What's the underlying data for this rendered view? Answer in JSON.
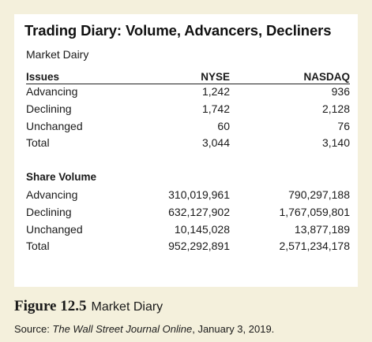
{
  "table": {
    "title": "Trading Diary: Volume, Advancers, Decliners",
    "subtitle": "Market Dairy",
    "issues": {
      "header": {
        "label": "Issues",
        "nyse": "NYSE",
        "nasdaq": "NASDAQ"
      },
      "rows": [
        {
          "label": "Advancing",
          "nyse": "1,242",
          "nasdaq": "936"
        },
        {
          "label": "Declining",
          "nyse": "1,742",
          "nasdaq": "2,128"
        },
        {
          "label": "Unchanged",
          "nyse": "60",
          "nasdaq": "76"
        },
        {
          "label": "Total",
          "nyse": "3,044",
          "nasdaq": "3,140"
        }
      ]
    },
    "share_volume": {
      "title": "Share Volume",
      "rows": [
        {
          "label": "Advancing",
          "nyse": "310,019,961",
          "nasdaq": "790,297,188"
        },
        {
          "label": "Declining",
          "nyse": "632,127,902",
          "nasdaq": "1,767,059,801"
        },
        {
          "label": "Unchanged",
          "nyse": "10,145,028",
          "nasdaq": "13,877,189"
        },
        {
          "label": "Total",
          "nyse": "952,292,891",
          "nasdaq": "2,571,234,178"
        }
      ]
    }
  },
  "caption": {
    "figure_number": "Figure 12.5",
    "figure_title": "Market Diary",
    "source_prefix": "Source: ",
    "source_publication": "The Wall Street Journal Online",
    "source_suffix": ", January 3, 2019."
  },
  "colors": {
    "frame_background": "#f4f0dc",
    "panel_background": "#ffffff"
  }
}
